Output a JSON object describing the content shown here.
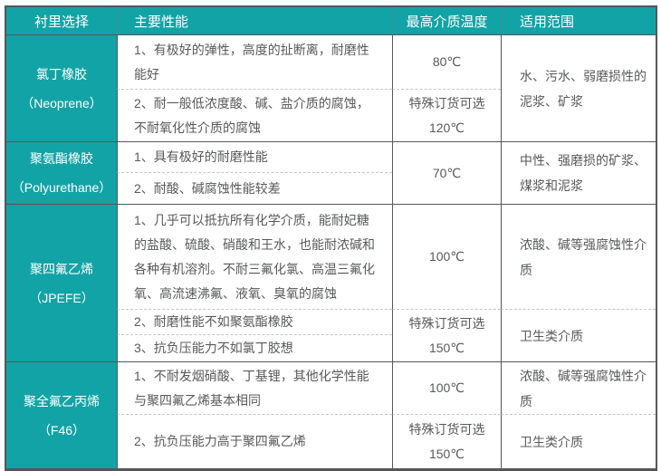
{
  "colors": {
    "accent_teal": "#12a3a6",
    "border_dark": "#55565a",
    "dashed_separator": "#c6c6c6",
    "body_text": "#58595b"
  },
  "table": {
    "header": {
      "lining": "衬里选择",
      "performance": "主要性能",
      "max_temp": "最高介质温度",
      "application": "适用范围"
    },
    "sections": [
      {
        "name": "氯丁橡胶",
        "alias": "（Neoprene）",
        "performance": [
          "1、有极好的弹性，高度的扯断离，耐磨性能好",
          "2、耐一般低浓度酸、碱、盐介质的腐蚀，不耐氧化性介质的腐蚀"
        ],
        "temps": [
          "80℃",
          "特殊订货可选\n120℃"
        ],
        "apps": [
          "水、污水、弱磨损性的泥浆、矿浆"
        ]
      },
      {
        "name": "聚氨酯橡胶",
        "alias": "（Polyurethane）",
        "performance": [
          "1、具有极好的耐磨性能",
          "2、耐酸、碱腐蚀性能较差"
        ],
        "temps": [
          "70℃"
        ],
        "apps": [
          "中性、强磨损的矿浆、煤浆和泥浆"
        ]
      },
      {
        "name": "聚四氟乙烯",
        "alias": "（JPEFE）",
        "performance": [
          "1、几乎可以抵抗所有化学介质，能耐妃糖的盐酸、硫酸、硝酸和王水，也能耐浓碱和各种有机溶剂。不耐三氟化氯、高温三氟化氧、高流速沸氟、液氧、臭氧的腐蚀",
          "2、耐磨性能不如聚氨酯橡胶",
          "3、抗负压能力不如氯丁胶想"
        ],
        "temps": [
          "100℃",
          "特殊订货可选\n150℃"
        ],
        "apps": [
          "浓酸、碱等强腐蚀性介质",
          "卫生类介质"
        ]
      },
      {
        "name": "聚全氟乙丙烯",
        "alias": "（F46）",
        "performance": [
          "1、不耐发烟硝酸、丁基锂，其他化学性能与聚四氟乙烯基本相同",
          "2、抗负压能力高于聚四氟乙烯"
        ],
        "temps": [
          "100℃",
          "特殊订货可选\n150℃"
        ],
        "apps": [
          "浓酸、碱等强腐蚀性介质",
          "卫生类介质"
        ]
      }
    ]
  }
}
